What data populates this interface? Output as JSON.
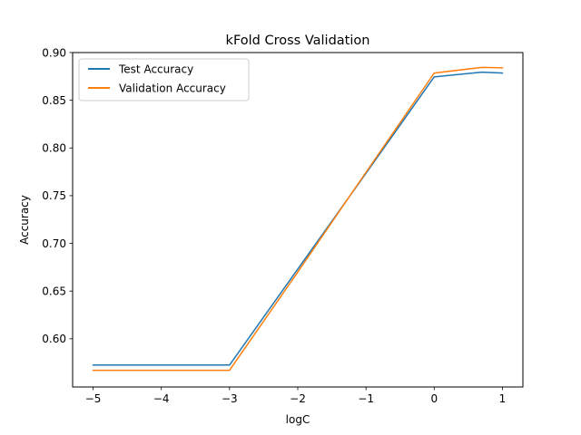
{
  "chart_data": {
    "type": "line",
    "title": "kFold Cross Validation",
    "xlabel": "logC",
    "ylabel": "Accuracy",
    "xlim": [
      -5.3,
      1.3
    ],
    "ylim": [
      0.5495,
      0.9
    ],
    "x": [
      -5,
      -4,
      -3,
      -2,
      -1,
      0,
      0.699,
      1
    ],
    "xticks": [
      -5,
      -4,
      -3,
      -2,
      -1,
      0,
      1
    ],
    "xtick_labels": [
      "−5",
      "−4",
      "−3",
      "−2",
      "−1",
      "0",
      "1"
    ],
    "yticks": [
      0.6,
      0.65,
      0.7,
      0.75,
      0.8,
      0.85,
      0.9
    ],
    "ytick_labels": [
      "0.60",
      "0.65",
      "0.70",
      "0.75",
      "0.80",
      "0.85",
      "0.90"
    ],
    "grid": false,
    "legend_position": "top-left",
    "series": [
      {
        "name": "Test Accuracy",
        "color": "#1f77b4",
        "values": [
          0.5725,
          0.5725,
          0.5725,
          0.673,
          0.7735,
          0.8745,
          0.8795,
          0.8785
        ]
      },
      {
        "name": "Validation Accuracy",
        "color": "#ff7f0e",
        "values": [
          0.567,
          0.567,
          0.567,
          0.67,
          0.7745,
          0.8785,
          0.8845,
          0.884
        ]
      }
    ]
  }
}
